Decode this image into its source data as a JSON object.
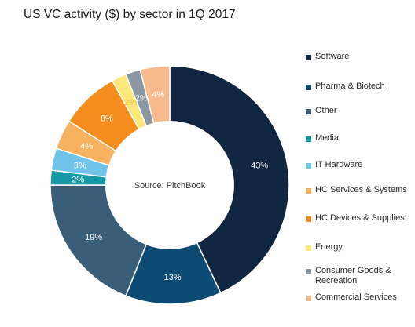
{
  "chart_data": {
    "type": "pie",
    "title": "US VC activity ($) by sector in 1Q 2017",
    "center_label": "Source: PitchBook",
    "slices": [
      {
        "name": "Software",
        "value": 43,
        "label": "43%",
        "color": "#10253f"
      },
      {
        "name": "Pharma & Biotech",
        "value": 13,
        "label": "13%",
        "color": "#0d4a74"
      },
      {
        "name": "Other",
        "value": 19,
        "label": "19%",
        "color": "#3a5d78"
      },
      {
        "name": "Media",
        "value": 2,
        "label": "2%",
        "color": "#1499a5"
      },
      {
        "name": "IT Hardware",
        "value": 3,
        "label": "3%",
        "color": "#71c4e9"
      },
      {
        "name": "HC Services & Systems",
        "value": 4,
        "label": "4%",
        "color": "#f7b25f"
      },
      {
        "name": "HC Devices & Supplies",
        "value": 8,
        "label": "8%",
        "color": "#f28d1e"
      },
      {
        "name": "Energy",
        "value": 2,
        "label": "2%",
        "color": "#fce77a"
      },
      {
        "name": "Consumer Goods & Recreation",
        "value": 2,
        "label": "2%",
        "color": "#8b97a3"
      },
      {
        "name": "Commercial Services",
        "value": 4,
        "label": "4%",
        "color": "#f6ba8c"
      }
    ],
    "legend_position": "right"
  }
}
